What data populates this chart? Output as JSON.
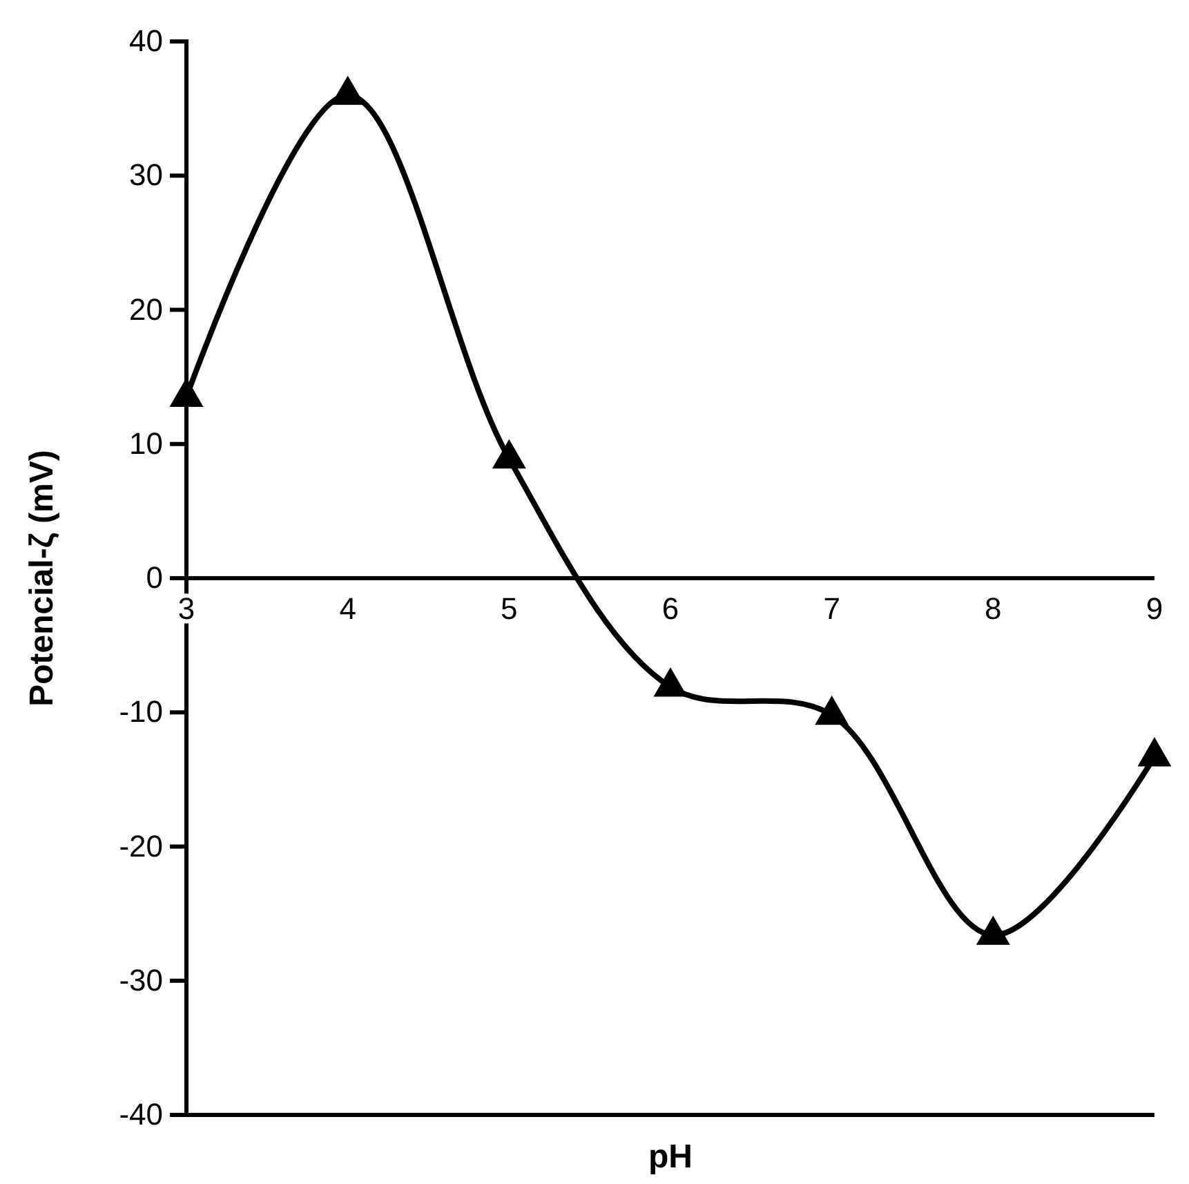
{
  "chart_data": {
    "type": "line",
    "xlabel": "pH",
    "ylabel": "Potencial-ζ (mV)",
    "x": [
      3,
      4,
      5,
      6,
      7,
      8,
      9
    ],
    "series": [
      {
        "color": "#000000",
        "values": [
          13.5,
          36,
          8.9,
          -8.1,
          -10.2,
          -26.6,
          -13.3
        ]
      }
    ],
    "xlim": [
      3,
      9
    ],
    "xticks": [
      3,
      4,
      5,
      6,
      7,
      8,
      9
    ],
    "ylim": [
      -40,
      40
    ],
    "yticks": [
      -40,
      -30,
      -20,
      -10,
      0,
      10,
      20,
      30,
      40
    ],
    "marker": "triangle",
    "line_style": "solid",
    "grid": false
  }
}
